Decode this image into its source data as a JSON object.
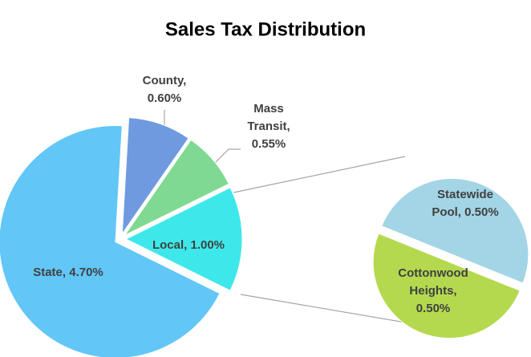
{
  "chart_data": {
    "type": "pie-of-pie",
    "title": "Sales Tax Distribution",
    "values": [
      4.7,
      0.6,
      0.55,
      1.0
    ],
    "value_labels": [
      "State, 4.70%",
      "County, 0.60%",
      "Mass Transit, 0.55%",
      "Local, 1.00%"
    ],
    "colors": [
      "#62c6f7",
      "#6f9ae0",
      "#7fd992",
      "#3ee8ea"
    ],
    "secondary": {
      "values": [
        0.5,
        0.5
      ],
      "value_labels": [
        "Statewide Pool, 0.50%",
        "Cottonwood Heights, 0.50%"
      ],
      "colors": [
        "#a3d5e6",
        "#b4d94f"
      ]
    }
  }
}
